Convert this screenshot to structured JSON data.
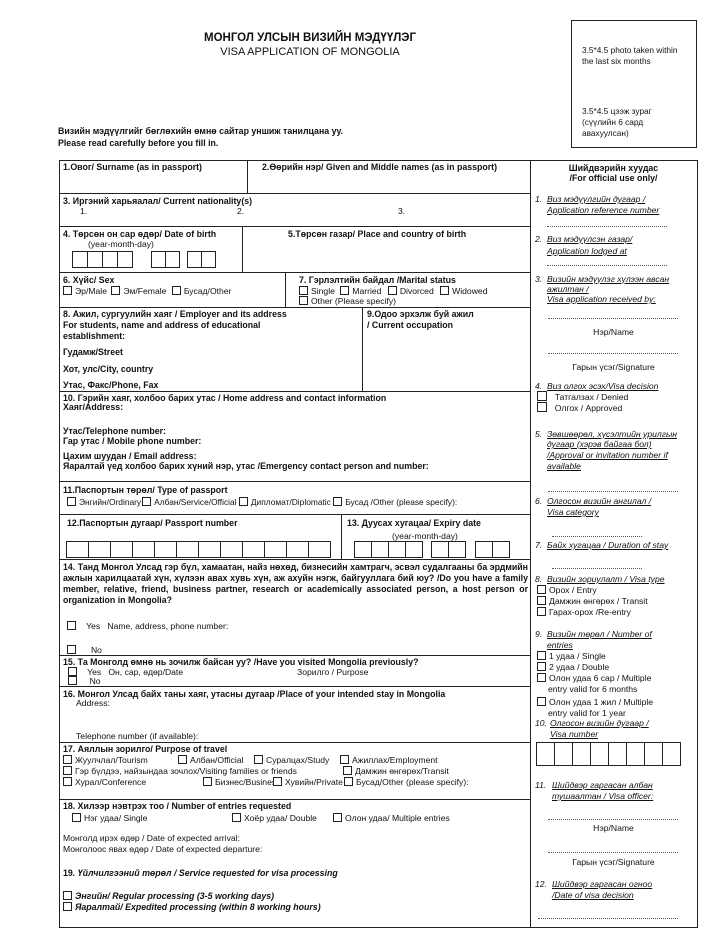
{
  "header": {
    "title_mn": "МОНГОЛ УЛСЫН ВИЗИЙН МЭДҮҮЛЭГ",
    "title_en": "VISA APPLICATION OF MONGOLIA",
    "instruction_mn": "Визийн мэдүүлгийг бөглөхийн өмнө сайтар уншиж танилцана уу.",
    "instruction_en": "Please read carefully before you fill in."
  },
  "photo": {
    "en": "3.5*4.5 photo taken within the last six months",
    "mn": "3.5*4.5 цээж зураг (сүүлийн 6 сард авахуулсан)"
  },
  "form": {
    "f1": "1.Овог/ Surname (as in passport)",
    "f2": "2.Өөрийн нэр/ Given and Middle names (as in passport)",
    "f3": {
      "label": "3. Иргэний харьяалал/ Current nationality(s)",
      "items": [
        "1.",
        "2.",
        "3."
      ]
    },
    "f4": {
      "label": "4. Төрсөн он сар өдөр/ Date of birth",
      "sub": "(year-month-day)"
    },
    "f5": "5.Төрсөн газар/ Place and country of birth",
    "f6": {
      "label": "6. Хүйс/ Sex",
      "options": [
        "Эр/Male",
        "Эм/Female",
        "Бусад/Other"
      ]
    },
    "f7": {
      "label": "7. Гэрлэлтийн байдал  /Marital status",
      "options": [
        "Single",
        "Married",
        "Divorced",
        "Widowed",
        "Other (Please specify)"
      ]
    },
    "f8": {
      "label": "8. Ажил, сургуулийн хаяг / Employer and its address",
      "sub1": "For students, name and address of educational",
      "sub2": "establishment:",
      "lines": [
        "Гудамж/Street",
        "Хот,  улс/City, country",
        "Утас, Факс/Phone, Fax"
      ]
    },
    "f9": {
      "label1": "9.Одоо эрхэлж буй ажил",
      "label2": "/ Current occupation"
    },
    "f10": {
      "label": "10. Гэрийн хаяг, холбоо барих утас / Home address and contact information",
      "lines": [
        "Хаяг/Address:",
        "Утас/Telephone number:",
        "Гар утас / Mobile phone number:",
        "Цахим шуудан / Email address:",
        "Яаралтай үед холбоо барих хүний нэр, утас /Emergency contact person and number:"
      ]
    },
    "f11": {
      "label": "11.Паспортын төрөл/ Type of passport",
      "options": [
        "Энгийн/Ordinary",
        "Албан/Service/Official",
        "Дипломат/Diplomatic",
        "Бусад /Other (please specify):"
      ]
    },
    "f12": "12.Паспортын дугаар/ Passport number",
    "f13": {
      "label": "13. Дуусах хугацаа/ Expiry date",
      "sub": "(year-month-day)"
    },
    "f14": {
      "question": "14. Танд Монгол Улсад гэр бүл, хамаатан, найз нөхөд, бизнесийн хамтрагч, эсвэл судалгааны ба эрдмийн ажлын харилцаатай хүн, хүлээн авах хувь хүн, аж ахуйн нэгж, байгууллага бий юу?  /Do you have a family member, relative, friend, business partner, research or academically associated person, a host person or organization in Mongolia?",
      "yes": "Yes",
      "yes_detail": "Name, address, phone number:",
      "no": "No"
    },
    "f15": {
      "label": "15.  Та Монголд өмнө нь зочилж байсан уу? /Have you visited Mongolia previously?",
      "yes": "Yes",
      "date": "Он, сар, өдөр/Date",
      "purpose": "Зорилго / Purpose",
      "no": "No"
    },
    "f16": {
      "label": "16.  Монгол Улсад байх таны хаяг, утасны дугаар /Place of your intended stay in Mongolia",
      "address": "Address:",
      "telephone": "Telephone number (if available):"
    },
    "f17": {
      "label": "17. Аяллын зорилго/ Purpose of travel",
      "options": [
        "Жуулчлал/Tourism",
        "Албан/Official",
        "Суралцах/Study",
        "Ажиллах/Employment",
        "Гэр бүлдээ, найзындаа зочлох/Visiting families or friends",
        "Дамжин өнгөрөх/Transit",
        "Хурал/Conference",
        "Бизнес/Business",
        "Хувийн/Private",
        "Бусад/Other (please specify):"
      ]
    },
    "f18": {
      "label": "18. Хилээр нэвтрэх тоо / Number of entries requested",
      "options": [
        "Нэг удаа/ Single",
        "Хоёр удаа/ Double",
        "Олон удаа/ Multiple entries"
      ],
      "arrival": "Монголд ирэх өдөр / Date of expected arrival:",
      "departure": "Монголоос явах өдөр / Date of expected departure:"
    },
    "f19": {
      "number": "19",
      "label": ". Үйлчилгээний төрөл / Service requested for visa processing",
      "options": [
        "Энгийн/ Regular processing (3-5 working days)",
        "Яаралтай/ Expedited processing (within 8 working hours)"
      ]
    }
  },
  "official": {
    "title_mn": "Шийдвэрийн хуудас",
    "title_en": "/For official use only/",
    "i1": [
      "1.",
      "Виз мэдүүлгийн дугаар /",
      "Application reference number"
    ],
    "i2": [
      "2.",
      "Виз мэдүүлсэн газар/",
      "Application lodged at"
    ],
    "i3": [
      "3.",
      "Визийн мэдүүлэг хүлээн авсан",
      "ажилтан /",
      "Visa application received by:"
    ],
    "name": "Нэр/Name",
    "signature": "Гарын үсэг/Signature",
    "i4": [
      "4.",
      "Виз олгох эсэх/Visa decision"
    ],
    "i4_options": [
      "Татгалзах / Denied",
      "Олгох / Approved"
    ],
    "i5": [
      "5.",
      "Зөвшөөрөл, хүсэлтийн урилгын",
      "дугаар (хэрэв байгаа бол)",
      "/Approval or invitation number if",
      "available"
    ],
    "i6": [
      "6.",
      "Олгосон визийн ангилал /",
      "Visa category"
    ],
    "i7": [
      "7.",
      "Байх хугацаа / Duration of stay"
    ],
    "i8": [
      "8.",
      "Визийн зориулалт / Visa type"
    ],
    "i8_options": [
      "Орох / Entry",
      "Дамжин өнгөрөх / Transit",
      "Гарах-орох /Re-entry"
    ],
    "i9": [
      "9.",
      "Визийн төрөл / Number of",
      "entries"
    ],
    "i9_options": [
      "1 удаа / Single",
      "2 удаа / Double",
      "Олон удаа 6 сар / Multiple",
      "entry valid for 6 months",
      "Олон удаа 1 жил / Multiple",
      "entry valid for 1 year"
    ],
    "i10": [
      "10.",
      "Олгосон визийн дугаар /",
      "Visa number"
    ],
    "i11": [
      "11.",
      "Шийдвэр гаргасан албан",
      "тушаалтан / Visa officer:"
    ],
    "i12": [
      "12.",
      "Шийдвэр гаргасан огноо",
      "/Date of visa decision"
    ]
  }
}
